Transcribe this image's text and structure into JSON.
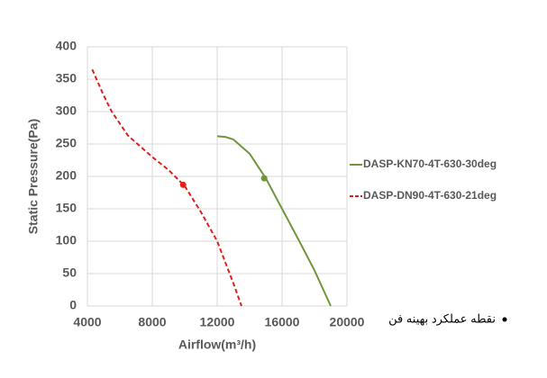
{
  "chart_data": {
    "type": "line",
    "x_label": "Airflow(m³/h)",
    "y_label": "Static Pressure(Pa)",
    "xlim": [
      4000,
      20000
    ],
    "xticks": [
      4000,
      8000,
      12000,
      16000,
      20000
    ],
    "ylim": [
      0,
      400
    ],
    "yticks": [
      0,
      50,
      100,
      150,
      200,
      250,
      300,
      350,
      400
    ],
    "grid": true,
    "legend": "right",
    "series": [
      {
        "name": "DASP-KN70-4T-630-30deg",
        "color": "#70963c",
        "dash": false,
        "x": [
          12000,
          12500,
          13000,
          14000,
          15000,
          16000,
          17000,
          18000,
          19000
        ],
        "values": [
          262,
          261,
          257,
          235,
          197,
          150,
          103,
          55,
          0
        ],
        "point": {
          "x": 14900,
          "y": 197
        }
      },
      {
        "name": "DASP-DN90-4T-630-21deg",
        "color": "#e0201b",
        "dash": true,
        "x": [
          4300,
          5000,
          5500,
          6500,
          8000,
          9000,
          10000,
          11000,
          12000,
          13000,
          13500
        ],
        "values": [
          365,
          325,
          300,
          263,
          230,
          210,
          185,
          145,
          100,
          35,
          0
        ],
        "point": {
          "x": 9900,
          "y": 187
        }
      }
    ],
    "annotation": "نقطه عملکرد بهینه فن"
  }
}
